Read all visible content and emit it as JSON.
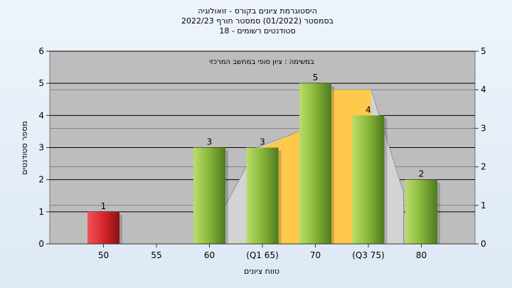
{
  "chart_data": {
    "type": "bar",
    "title_lines": [
      "היסטוגרמת ציונים בקורס - זואולוגיה",
      "בסמסטר  (01/2022)  סמסטר חורף 2022/23",
      "סטודנטים רשומים - 18"
    ],
    "annotation": "במשימה : ציון סופי במחשב המרכזי",
    "categories": [
      "50",
      "55",
      "60",
      "(Q1 65)",
      "70",
      "(Q3 75)",
      "80"
    ],
    "values": [
      1,
      0,
      3,
      3,
      5,
      4,
      2
    ],
    "value_labels": [
      "1",
      "",
      "3",
      "3",
      "5",
      "4",
      "2"
    ],
    "highlight_category": "50",
    "xlabel": "טווח ציונים",
    "ylabel": "מספר סטודנטים",
    "ylim": [
      0,
      6
    ],
    "yticks": [
      "0",
      "1",
      "2",
      "3",
      "4",
      "5",
      "6"
    ],
    "y2lim": [
      0,
      5
    ],
    "y2ticks": [
      "0",
      "1",
      "2",
      "3",
      "4",
      "5"
    ],
    "grid": true,
    "iqr_band": {
      "from": "(Q1 65)",
      "to": "(Q3 75)"
    },
    "colors": {
      "bar": "#9cc64a",
      "highlight_bar": "#d8262b",
      "plot_bg": "#bdbdbd",
      "iqr_fill": "#ffc94d",
      "curve_fill": "#d3d3d3"
    }
  }
}
